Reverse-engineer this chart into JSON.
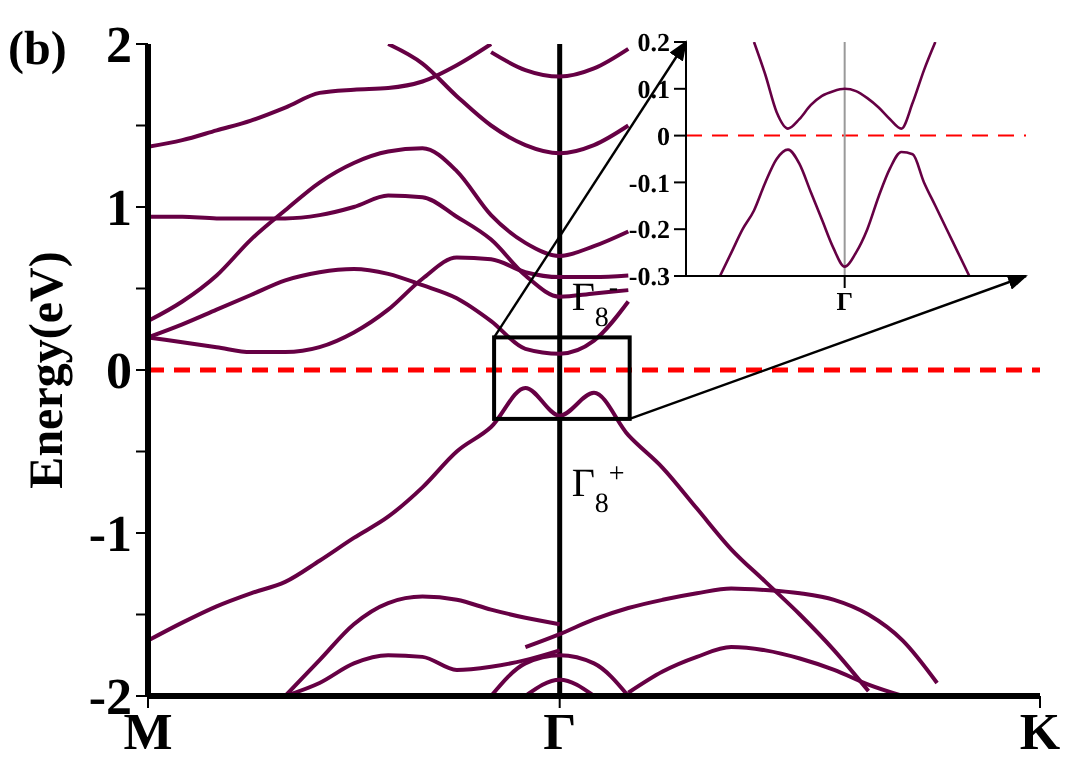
{
  "chart_data": [
    {
      "type": "line",
      "title": "(b)",
      "ylabel": "Energy(eV)",
      "categories": [
        "M",
        null,
        null,
        null,
        null,
        null,
        null,
        null,
        null,
        null,
        null,
        null,
        "Γ",
        null,
        null,
        null,
        null,
        null,
        null,
        null,
        null,
        null,
        null,
        null,
        null,
        null,
        "K"
      ],
      "ylim": [
        -2,
        2
      ],
      "yticks": [
        -2,
        {
          "value": -1.5,
          "label": null
        },
        -1,
        {
          "value": -0.5,
          "label": null
        },
        0,
        {
          "value": 0.5,
          "label": null
        },
        1,
        {
          "value": 1.5,
          "label": null
        },
        2
      ],
      "ref_lines": [
        {
          "axis": "y",
          "value": 0,
          "color": "#ff0000",
          "line_style": "dashed"
        },
        {
          "axis": "x",
          "value": "Γ",
          "color": "#000000"
        }
      ],
      "annotations": [
        {
          "text": "Γ$_{8}$$^{-}$",
          "x": "Γ",
          "y": 0.1
        },
        {
          "text": "Γ$_{8}$$^{+}$",
          "x": "Γ",
          "y": -0.28
        }
      ],
      "series": [
        {
          "color": "#660044",
          "values": [
            -1.66,
            -1.55,
            -1.45,
            -1.37,
            -1.3,
            -1.17,
            -1.03,
            -0.9,
            -0.72,
            -0.5,
            -0.35,
            -0.11,
            -0.28,
            -0.14,
            -0.4,
            -0.6,
            -0.85,
            -1.1,
            -1.3,
            -1.5,
            -1.72,
            -1.97,
            null,
            null,
            null,
            null,
            null
          ]
        },
        {
          "color": "#660044",
          "values": [
            0.2,
            0.28,
            0.37,
            0.46,
            0.55,
            0.6,
            0.62,
            0.59,
            0.52,
            0.44,
            0.3,
            0.13,
            0.1,
            0.18,
            0.42,
            null,
            null,
            null,
            null,
            null,
            null,
            null,
            null,
            null,
            null,
            null,
            null
          ]
        },
        {
          "color": "#660044",
          "values": [
            0.2,
            0.17,
            0.14,
            0.11,
            0.11,
            0.14,
            0.23,
            0.37,
            0.56,
            0.69,
            0.68,
            0.6,
            0.57,
            0.57,
            0.58,
            null,
            null,
            null,
            null,
            null,
            null,
            null,
            null,
            null,
            null,
            null,
            null
          ]
        },
        {
          "color": "#660044",
          "values": [
            0.3,
            0.42,
            0.58,
            0.8,
            0.98,
            1.15,
            1.27,
            1.34,
            1.36,
            1.22,
            0.95,
            0.78,
            0.7,
            0.76,
            0.85,
            null,
            null,
            null,
            null,
            null,
            null,
            null,
            null,
            null,
            null,
            null,
            null
          ]
        },
        {
          "color": "#660044",
          "values": [
            0.94,
            0.94,
            0.93,
            0.93,
            0.93,
            0.95,
            1.0,
            1.07,
            1.06,
            0.94,
            0.8,
            0.58,
            0.45,
            0.47,
            0.49,
            null,
            null,
            null,
            null,
            null,
            null,
            null,
            null,
            null,
            null,
            null,
            null
          ]
        },
        {
          "color": "#660044",
          "values": [
            1.37,
            1.41,
            1.47,
            1.53,
            1.61,
            1.7,
            1.72,
            1.73,
            1.77,
            1.87,
            2.0,
            null,
            null,
            null,
            null,
            null,
            null,
            null,
            null,
            null,
            null,
            null,
            null,
            null,
            null,
            null,
            null
          ]
        },
        {
          "color": "#660044",
          "values": [
            null,
            null,
            null,
            null,
            null,
            null,
            null,
            2.0,
            1.88,
            1.68,
            1.5,
            1.38,
            1.33,
            1.38,
            1.5,
            null,
            null,
            null,
            null,
            null,
            null,
            null,
            null,
            null,
            null,
            null,
            null
          ]
        },
        {
          "color": "#660044",
          "values": [
            null,
            null,
            null,
            null,
            null,
            null,
            null,
            null,
            null,
            null,
            1.95,
            1.84,
            1.8,
            1.85,
            1.97,
            null,
            null,
            null,
            null,
            null,
            null,
            null,
            null,
            null,
            null,
            null,
            null
          ]
        },
        {
          "color": "#660044",
          "values": [
            null,
            null,
            null,
            null,
            -2.0,
            -1.78,
            -1.56,
            -1.43,
            -1.39,
            -1.41,
            -1.47,
            -1.52,
            -1.56,
            null,
            null,
            null,
            null,
            null,
            null,
            null,
            null,
            null,
            null,
            null,
            null,
            null,
            null
          ]
        },
        {
          "color": "#660044",
          "values": [
            null,
            null,
            null,
            null,
            -2.0,
            -1.92,
            -1.8,
            -1.75,
            -1.76,
            -1.84,
            -1.82,
            -1.78,
            -1.72,
            null,
            null,
            null,
            null,
            null,
            null,
            null,
            null,
            null,
            null,
            null,
            null,
            null,
            null
          ]
        },
        {
          "color": "#660044",
          "values": [
            null,
            null,
            null,
            null,
            null,
            null,
            null,
            null,
            null,
            null,
            null,
            -1.7,
            -1.62,
            -1.53,
            -1.46,
            -1.41,
            -1.37,
            -1.34,
            -1.35,
            -1.37,
            -1.41,
            -1.5,
            -1.66,
            -1.92,
            null,
            null,
            null
          ]
        },
        {
          "color": "#660044",
          "values": [
            null,
            null,
            null,
            null,
            null,
            null,
            null,
            null,
            null,
            null,
            null,
            null,
            null,
            null,
            -1.98,
            -1.85,
            -1.76,
            -1.7,
            -1.72,
            -1.77,
            -1.84,
            -1.93,
            -2.0,
            null,
            null,
            null,
            null
          ]
        },
        {
          "color": "#660044",
          "values": [
            null,
            null,
            null,
            null,
            null,
            null,
            null,
            null,
            null,
            null,
            -2.0,
            -1.8,
            -1.75,
            -1.8,
            -2.0,
            null,
            null,
            null,
            null,
            null,
            null,
            null,
            null,
            null,
            null,
            null,
            null
          ]
        },
        {
          "color": "#660044",
          "values": [
            null,
            null,
            null,
            null,
            null,
            null,
            null,
            null,
            null,
            null,
            null,
            -2.0,
            -1.9,
            -2.0,
            null,
            null,
            null,
            null,
            null,
            null,
            null,
            null,
            null,
            null,
            null,
            null,
            null
          ]
        }
      ]
    },
    {
      "type": "line",
      "categories": [
        null,
        null,
        null,
        null,
        null,
        null,
        null,
        null,
        null,
        null,
        null,
        null,
        null,
        null,
        "Γ",
        null,
        null,
        null,
        null,
        null,
        null,
        null,
        null,
        null,
        null,
        null,
        null,
        null,
        null,
        null,
        null
      ],
      "ylim": [
        -0.3,
        0.2
      ],
      "yticks": [
        -0.3,
        -0.2,
        -0.1,
        0,
        0.1,
        0.2
      ],
      "ref_lines": [
        {
          "axis": "y",
          "value": 0,
          "color": "#ff0000",
          "line_style": "dashed"
        },
        {
          "axis": "x",
          "value": "Γ",
          "color": "#999999"
        }
      ],
      "series": [
        {
          "color": "#660044",
          "values": [
            null,
            null,
            null,
            null,
            null,
            null,
            0.2,
            0.13,
            0.05,
            0.015,
            0.035,
            0.065,
            0.085,
            0.095,
            0.1,
            0.095,
            0.08,
            0.06,
            0.035,
            0.015,
            0.07,
            0.14,
            0.2,
            null,
            null,
            null,
            null,
            null,
            null,
            null,
            null
          ]
        },
        {
          "color": "#660044",
          "values": [
            null,
            null,
            null,
            -0.3,
            -0.25,
            -0.2,
            -0.16,
            -0.1,
            -0.05,
            -0.03,
            -0.06,
            -0.12,
            -0.18,
            -0.24,
            -0.28,
            -0.25,
            -0.2,
            -0.13,
            -0.07,
            -0.035,
            -0.04,
            -0.1,
            -0.15,
            -0.2,
            -0.25,
            -0.3,
            null,
            null,
            null,
            null,
            null
          ]
        }
      ]
    }
  ]
}
